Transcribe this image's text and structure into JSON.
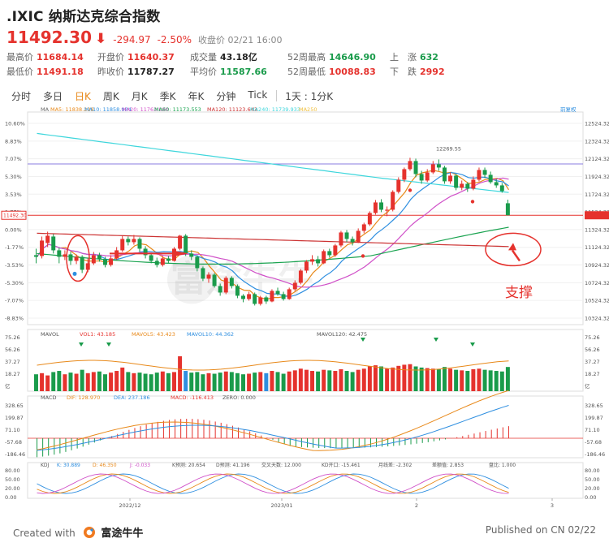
{
  "header": {
    "title": ".IXIC 纳斯达克综合指数",
    "price": "11492.30",
    "change": "-294.97",
    "change_pct": "-2.50%",
    "close_label": "收盘价 02/21 16:00"
  },
  "stats": [
    [
      {
        "label": "最高价",
        "value": "11684.14",
        "color": "red"
      },
      {
        "label": "开盘价",
        "value": "11640.37",
        "color": "red"
      },
      {
        "label": "成交量",
        "value": "43.18亿",
        "color": "blk"
      },
      {
        "label": "52周最高",
        "value": "14646.90",
        "color": "grn"
      },
      {
        "label": "上　涨",
        "value": "632",
        "color": "grn"
      }
    ],
    [
      {
        "label": "最低价",
        "value": "11491.18",
        "color": "red"
      },
      {
        "label": "昨收价",
        "value": "11787.27",
        "color": "blk"
      },
      {
        "label": "平均价",
        "value": "11587.66",
        "color": "grn"
      },
      {
        "label": "52周最低",
        "value": "10088.83",
        "color": "red"
      },
      {
        "label": "下　跌",
        "value": "2992",
        "color": "red"
      }
    ]
  ],
  "tabs": [
    "分时",
    "多日",
    "日K",
    "周K",
    "月K",
    "季K",
    "年K",
    "分钟",
    "Tick",
    "1天 : 1分K"
  ],
  "active_tab": 2,
  "main_legend": {
    "ma": "MA",
    "ma5": "MA5: 11838.228",
    "ma10": "MA10: 11858.984",
    "ma20": "MA20: 11763.080",
    "ma60": "MA60: 11173.553",
    "ma120": "MA120: 11123.643",
    "ma240": "MA240: 11739.933",
    "ma250": "MA250",
    "fq": "前复权"
  },
  "main_axis": {
    "left": [
      "10.60%",
      "8.83%",
      "7.07%",
      "5.30%",
      "3.53%",
      "1.77%",
      "0.00%",
      "-1.77%",
      "-3.53%",
      "-5.30%",
      "-7.07%",
      "-8.83%"
    ],
    "right": [
      "12524.32",
      "12324.32",
      "12124.32",
      "11924.32",
      "11724.32",
      "11524.32",
      "11324.32",
      "11124.32",
      "10924.32",
      "10724.32",
      "10524.32",
      "10324.32"
    ],
    "last_price_label": "11492.30",
    "high_label": "12269.55"
  },
  "mavol_legend": {
    "name": "MAVOL",
    "vol1": "VOL1: 43.185",
    "mavol5": "MAVOL5: 43.423",
    "mavol10": "MAVOL10: 44.362",
    "mavol120": "MAVOL120: 42.475"
  },
  "mavol_axis": {
    "left": [
      "75.26",
      "56.26",
      "37.27",
      "18.27",
      "亿"
    ],
    "right": [
      "75.26",
      "56.26",
      "37.27",
      "18.27",
      "亿"
    ]
  },
  "macd_legend": {
    "name": "MACD",
    "dif": "DIF: 128.970",
    "dea": "DEA: 237.186",
    "macd": "MACD: -116.413",
    "zero": "ZERO: 0.000"
  },
  "macd_axis": {
    "left": [
      "328.65",
      "199.87",
      "71.10",
      "-57.68",
      "-186.46"
    ],
    "right": [
      "328.65",
      "199.87",
      "71.10",
      "-57.68",
      "-186.46"
    ]
  },
  "kdj_legend": {
    "name": "KDJ",
    "k": "K: 30.889",
    "d": "D: 46.350",
    "j": "J: -0.033",
    "kpre": "K预测: 20.654",
    "dpre": "D预测: 41.196",
    "cross": "交叉天数: 12.000",
    "kd": "KD开口: -15.461",
    "yue": "月线差: -2.302",
    "zhan": "差额值: 2.853",
    "pan": "盘比: 1.000"
  },
  "kdj_axis": {
    "left": [
      "80.00",
      "50.00",
      "20.00",
      "0.00"
    ],
    "right": [
      "80.00",
      "50.00",
      "20.00",
      "0.00"
    ]
  },
  "date_axis": [
    "2022/12",
    "2023/01",
    "2",
    "3"
  ],
  "annotation": "支撑",
  "footer": {
    "created": "Created with",
    "brand": "富途牛牛",
    "published": "Published on CN 02/22"
  },
  "watermark": "富途牛牛",
  "colors": {
    "up": "#e5322d",
    "down": "#1a9b4b",
    "ma5": "#e8891a",
    "ma10": "#2f8fe0",
    "ma20": "#d050c8",
    "ma60": "#1aa350",
    "ma120": "#cc3333",
    "ma240": "#3ed6dc"
  },
  "chart_data": {
    "type": "candlestick",
    "ylim": [
      10224.32,
      12624.32
    ],
    "candles": [
      [
        11000,
        10980,
        11080,
        10900
      ],
      [
        10990,
        11180,
        11230,
        10960
      ],
      [
        11150,
        11240,
        11290,
        11100
      ],
      [
        11230,
        11060,
        11260,
        11020
      ],
      [
        11060,
        10980,
        11090,
        10900
      ],
      [
        10980,
        11010,
        11060,
        10940
      ],
      [
        11010,
        10930,
        11040,
        10880
      ],
      [
        10930,
        10980,
        11010,
        10890
      ],
      [
        10980,
        10820,
        11000,
        10780
      ],
      [
        10820,
        10900,
        10960,
        10790
      ],
      [
        10900,
        11000,
        11040,
        10880
      ],
      [
        11000,
        10950,
        11030,
        10920
      ],
      [
        10950,
        10880,
        10980,
        10850
      ],
      [
        10880,
        10960,
        11000,
        10860
      ],
      [
        10960,
        11060,
        11100,
        10940
      ],
      [
        11060,
        11200,
        11240,
        11040
      ],
      [
        11200,
        11160,
        11230,
        11120
      ],
      [
        11160,
        11200,
        11250,
        11130
      ],
      [
        11200,
        11080,
        11220,
        11040
      ],
      [
        11080,
        11000,
        11110,
        10960
      ],
      [
        11000,
        10930,
        11030,
        10900
      ],
      [
        10930,
        10880,
        10970,
        10850
      ],
      [
        10880,
        10960,
        10990,
        10860
      ],
      [
        10960,
        10930,
        10990,
        10900
      ],
      [
        10930,
        11080,
        11100,
        10920
      ],
      [
        11080,
        11240,
        11250,
        11060
      ],
      [
        11240,
        11020,
        11260,
        10990
      ],
      [
        11020,
        10980,
        11060,
        10940
      ],
      [
        10980,
        10840,
        11000,
        10800
      ],
      [
        10840,
        10710,
        10860,
        10680
      ],
      [
        10710,
        10760,
        10790,
        10660
      ],
      [
        10760,
        10620,
        10780,
        10600
      ],
      [
        10620,
        10540,
        10650,
        10500
      ],
      [
        10540,
        10720,
        10740,
        10520
      ],
      [
        10720,
        10620,
        10740,
        10590
      ],
      [
        10620,
        10500,
        10640,
        10470
      ],
      [
        10500,
        10460,
        10520,
        10420
      ],
      [
        10460,
        10520,
        10550,
        10440
      ],
      [
        10520,
        10400,
        10540,
        10380
      ],
      [
        10400,
        10480,
        10500,
        10380
      ],
      [
        10480,
        10430,
        10500,
        10400
      ],
      [
        10430,
        10560,
        10580,
        10420
      ],
      [
        10560,
        10520,
        10600,
        10500
      ],
      [
        10520,
        10460,
        10550,
        10440
      ],
      [
        10460,
        10580,
        10600,
        10450
      ],
      [
        10580,
        10660,
        10690,
        10560
      ],
      [
        10660,
        10810,
        10830,
        10640
      ],
      [
        10810,
        10920,
        10940,
        10780
      ],
      [
        10920,
        10950,
        11000,
        10880
      ],
      [
        10950,
        10900,
        10990,
        10860
      ],
      [
        10900,
        11050,
        11070,
        10890
      ],
      [
        11050,
        11000,
        11080,
        10970
      ],
      [
        11000,
        11120,
        11140,
        10980
      ],
      [
        11120,
        11280,
        11300,
        11100
      ],
      [
        11280,
        11200,
        11310,
        11160
      ],
      [
        11200,
        11160,
        11230,
        11120
      ],
      [
        11160,
        11300,
        11330,
        11150
      ],
      [
        11300,
        11380,
        11400,
        11270
      ],
      [
        11380,
        11520,
        11540,
        11360
      ],
      [
        11520,
        11650,
        11680,
        11500
      ],
      [
        11650,
        11560,
        11690,
        11530
      ],
      [
        11560,
        11560,
        11600,
        11480
      ],
      [
        11560,
        11780,
        11800,
        11540
      ],
      [
        11780,
        11930,
        11960,
        11760
      ],
      [
        11930,
        12060,
        12080,
        11900
      ],
      [
        12060,
        12160,
        12200,
        12040
      ],
      [
        12160,
        12000,
        12190,
        11960
      ],
      [
        12000,
        11920,
        12040,
        11880
      ],
      [
        11920,
        12020,
        12060,
        11900
      ],
      [
        12020,
        12120,
        12160,
        12000
      ],
      [
        12120,
        12080,
        12180,
        12040
      ],
      [
        12080,
        11910,
        12100,
        11880
      ],
      [
        11910,
        11980,
        12020,
        11880
      ],
      [
        11980,
        11830,
        12000,
        11800
      ],
      [
        11830,
        11880,
        11920,
        11800
      ],
      [
        11880,
        11820,
        11900,
        11780
      ],
      [
        11820,
        11930,
        11970,
        11800
      ],
      [
        11930,
        12050,
        12080,
        11910
      ],
      [
        12050,
        11990,
        12080,
        11950
      ],
      [
        11990,
        11900,
        12030,
        11880
      ],
      [
        11900,
        11860,
        11940,
        11830
      ],
      [
        11860,
        11790,
        11890,
        11770
      ],
      [
        11640,
        11492,
        11684,
        11491
      ]
    ]
  }
}
